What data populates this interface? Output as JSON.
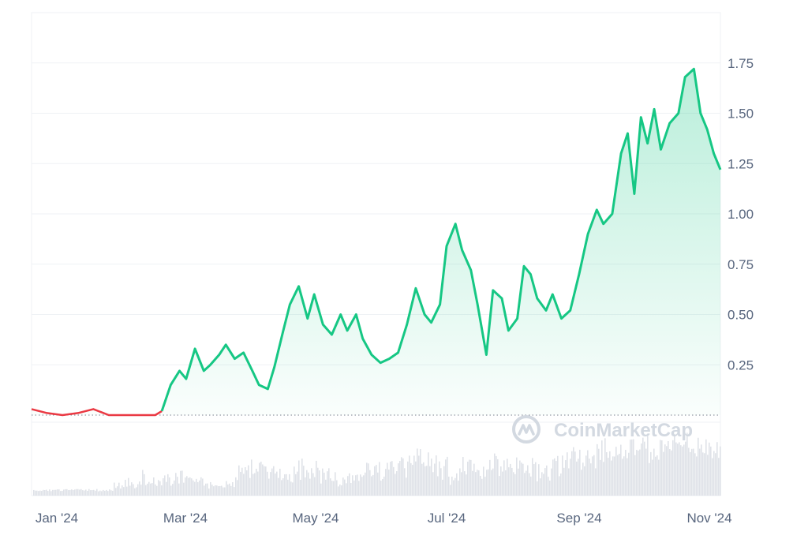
{
  "watermark": {
    "brand": "CoinMarketCap",
    "logo": "coinmarketcap-logo-icon"
  },
  "colors": {
    "up": "#16c784",
    "down": "#ea3943",
    "grid": "#eff2f5",
    "text": "#58667e",
    "volume": "#d9dde4"
  },
  "chart_data": {
    "type": "area",
    "title": "",
    "xlabel": "",
    "ylabel": "",
    "x_ticks": [
      "Jan '24",
      "Mar '24",
      "May '24",
      "Jul '24",
      "Sep '24",
      "Nov '24"
    ],
    "y_ticks": [
      "0.25",
      "0.50",
      "0.75",
      "1.00",
      "1.25",
      "1.50",
      "1.75"
    ],
    "ylim": [
      -0.4,
      2.0
    ],
    "baseline": 0.0,
    "grid": true,
    "y_axis_position": "right",
    "x": [
      "2023-12-31",
      "2024-01-07",
      "2024-01-14",
      "2024-01-21",
      "2024-01-28",
      "2024-02-04",
      "2024-02-11",
      "2024-02-18",
      "2024-02-25",
      "2024-02-28",
      "2024-03-03",
      "2024-03-07",
      "2024-03-10",
      "2024-03-14",
      "2024-03-18",
      "2024-03-21",
      "2024-03-25",
      "2024-03-28",
      "2024-04-01",
      "2024-04-05",
      "2024-04-09",
      "2024-04-12",
      "2024-04-16",
      "2024-04-19",
      "2024-04-23",
      "2024-04-26",
      "2024-04-30",
      "2024-05-04",
      "2024-05-07",
      "2024-05-11",
      "2024-05-15",
      "2024-05-19",
      "2024-05-22",
      "2024-05-26",
      "2024-05-29",
      "2024-06-02",
      "2024-06-06",
      "2024-06-10",
      "2024-06-14",
      "2024-06-18",
      "2024-06-22",
      "2024-06-26",
      "2024-06-29",
      "2024-07-03",
      "2024-07-06",
      "2024-07-10",
      "2024-07-13",
      "2024-07-17",
      "2024-07-20",
      "2024-07-24",
      "2024-07-27",
      "2024-07-31",
      "2024-08-03",
      "2024-08-07",
      "2024-08-10",
      "2024-08-13",
      "2024-08-16",
      "2024-08-20",
      "2024-08-23",
      "2024-08-27",
      "2024-08-31",
      "2024-09-04",
      "2024-09-08",
      "2024-09-12",
      "2024-09-15",
      "2024-09-19",
      "2024-09-23",
      "2024-09-26",
      "2024-09-29",
      "2024-10-02",
      "2024-10-05",
      "2024-10-08",
      "2024-10-11",
      "2024-10-15",
      "2024-10-19",
      "2024-10-22",
      "2024-10-26",
      "2024-10-29",
      "2024-11-01",
      "2024-11-04",
      "2024-11-07"
    ],
    "series": [
      {
        "values": [
          0.03,
          0.01,
          0.0,
          0.01,
          0.03,
          0.0,
          0.0,
          0.0,
          0.0,
          0.02,
          0.15,
          0.22,
          0.18,
          0.33,
          0.22,
          0.25,
          0.3,
          0.35,
          0.28,
          0.31,
          0.22,
          0.15,
          0.13,
          0.24,
          0.42,
          0.55,
          0.64,
          0.48,
          0.6,
          0.45,
          0.4,
          0.5,
          0.42,
          0.5,
          0.38,
          0.3,
          0.26,
          0.28,
          0.31,
          0.45,
          0.63,
          0.5,
          0.46,
          0.55,
          0.84,
          0.95,
          0.82,
          0.72,
          0.55,
          0.3,
          0.62,
          0.58,
          0.42,
          0.48,
          0.74,
          0.7,
          0.58,
          0.52,
          0.6,
          0.48,
          0.52,
          0.7,
          0.9,
          1.02,
          0.95,
          1.0,
          1.3,
          1.4,
          1.1,
          1.48,
          1.35,
          1.52,
          1.32,
          1.45,
          1.5,
          1.68,
          1.72,
          1.5,
          1.42,
          1.3,
          1.22
        ]
      }
    ]
  }
}
